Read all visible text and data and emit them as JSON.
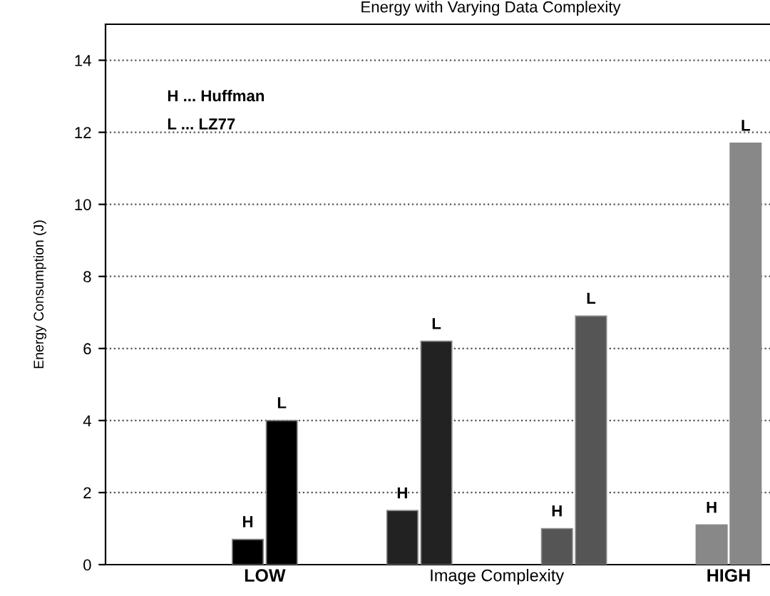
{
  "chart_data": {
    "type": "bar",
    "title": "Energy with Varying Data Complexity",
    "xlabel": "Image Complexity",
    "ylabel": "Energy Consumption (J)",
    "categories": [
      "LOW",
      null,
      null,
      "HIGH"
    ],
    "series": [
      {
        "name": "H",
        "colors": [
          "#000000",
          "#222222",
          "#555555",
          "#888888"
        ],
        "values": [
          0.7,
          1.5,
          1.0,
          1.1
        ]
      },
      {
        "name": "L",
        "colors": [
          "#000000",
          "#222222",
          "#555555",
          "#888888"
        ],
        "values": [
          4.0,
          6.2,
          6.9,
          11.7
        ]
      }
    ],
    "annotations": [
      "H ... Huffman",
      "L ... LZ77"
    ],
    "ylim": [
      0,
      15
    ],
    "yticks": [
      0,
      2,
      4,
      6,
      8,
      10,
      12,
      14
    ],
    "grid": "y",
    "legend": false
  }
}
